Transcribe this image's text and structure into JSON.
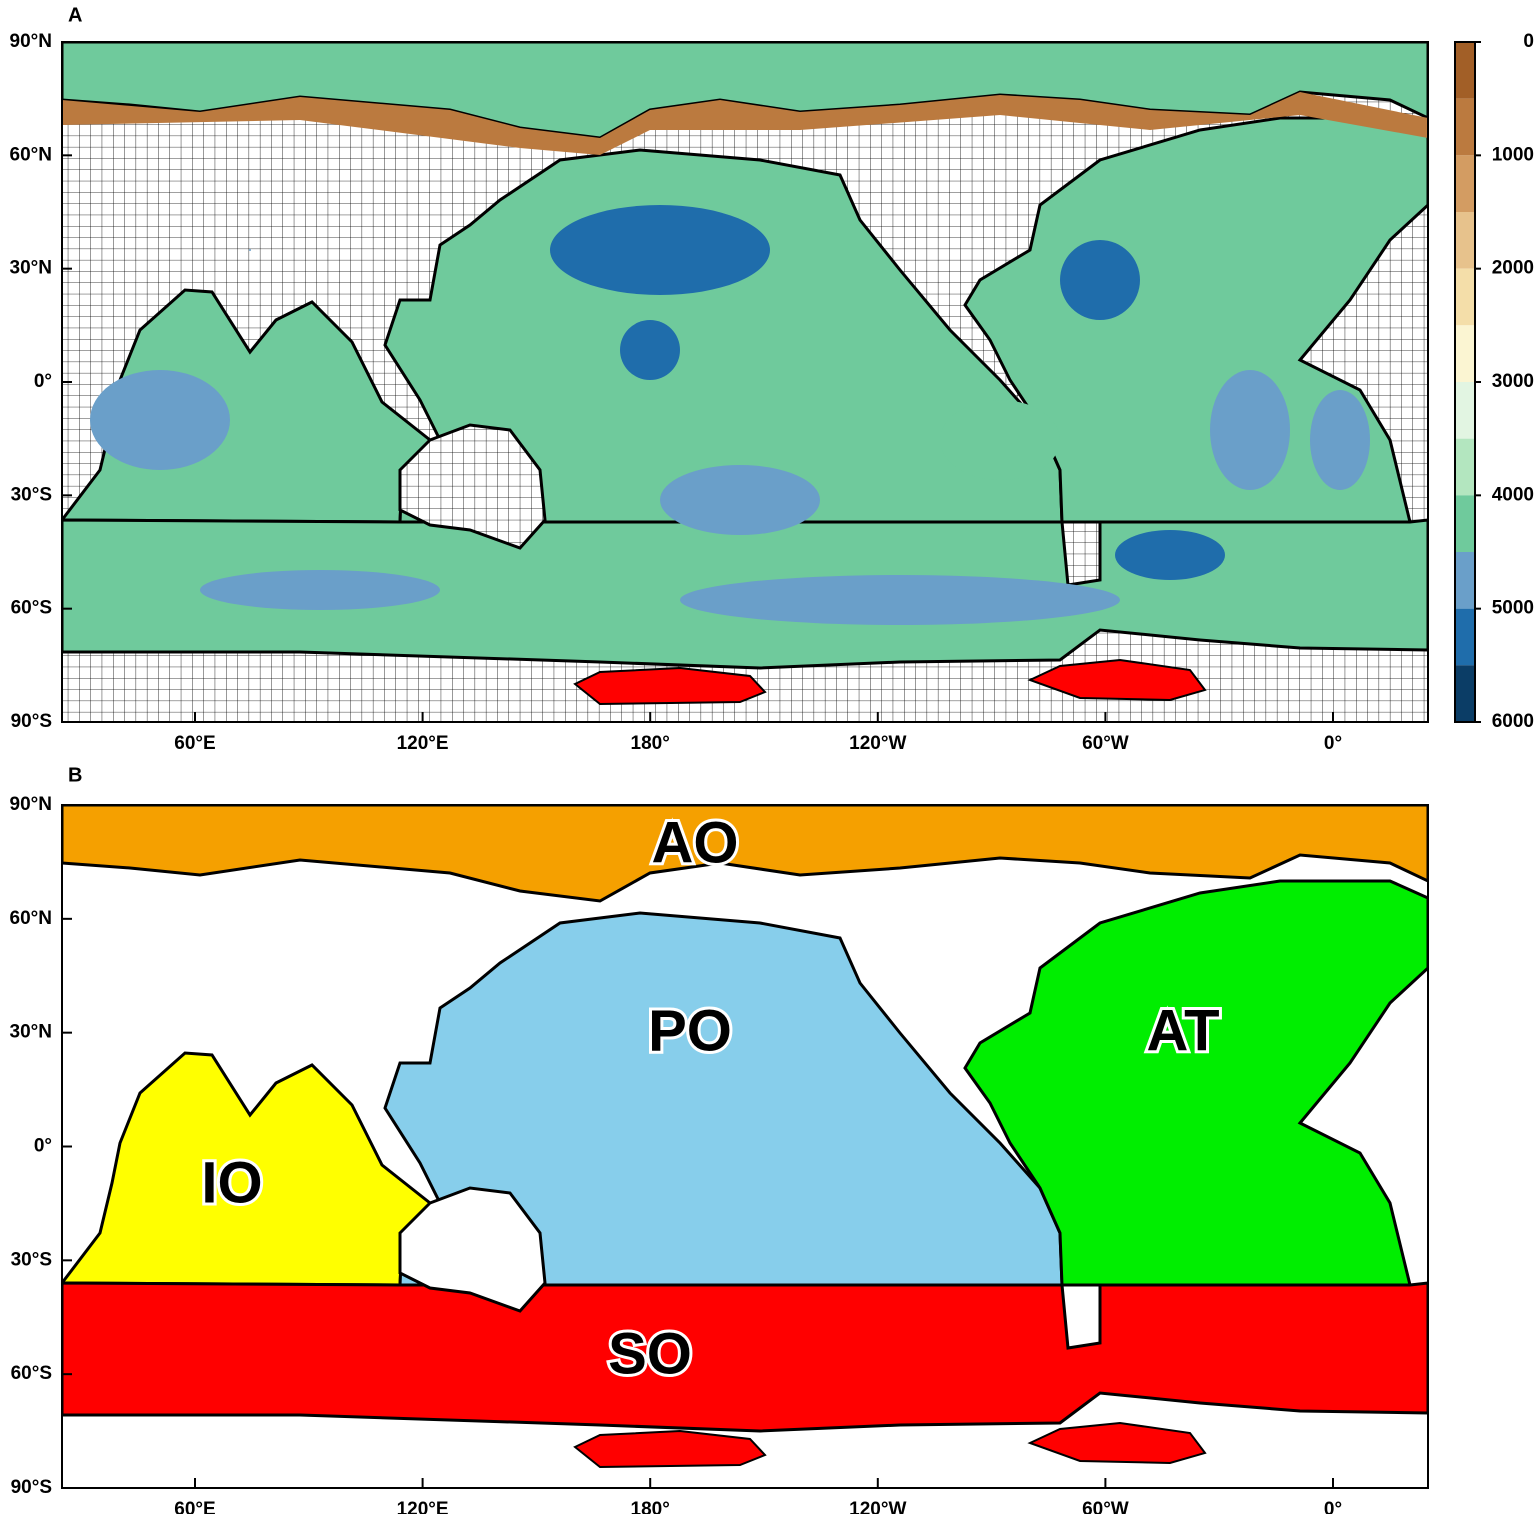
{
  "panels": [
    {
      "letter": "A",
      "lat_labels": [
        "90°N",
        "60°N",
        "30°N",
        "0°",
        "30°S",
        "60°S",
        "90°S"
      ],
      "lon_labels": [
        "60°E",
        "120°E",
        "180°",
        "120°W",
        "60°W",
        "0°"
      ],
      "colorbar": {
        "ticks": [
          0,
          1000,
          2000,
          3000,
          4000,
          5000,
          6000
        ],
        "colors": [
          "#a25f27",
          "#bb7a3f",
          "#d39c62",
          "#e7c28c",
          "#f4dea9",
          "#fbf5d2",
          "#e2f5e2",
          "#b3e6bf",
          "#6fca9c",
          "#6a9fc9",
          "#1f6dab",
          "#0b3d66"
        ]
      }
    },
    {
      "letter": "B",
      "lat_labels": [
        "90°N",
        "60°N",
        "30°N",
        "0°",
        "30°S",
        "60°S",
        "90°S"
      ],
      "lon_labels": [
        "60°E",
        "120°E",
        "180°",
        "120°W",
        "60°W",
        "0°"
      ],
      "regions": [
        {
          "label": "AO",
          "color": "#f5a000"
        },
        {
          "label": "PO",
          "color": "#87ceeb"
        },
        {
          "label": "AT",
          "color": "#00ee00"
        },
        {
          "label": "IO",
          "color": "#ffff00"
        },
        {
          "label": "SO",
          "color": "#ff0000"
        }
      ]
    }
  ]
}
